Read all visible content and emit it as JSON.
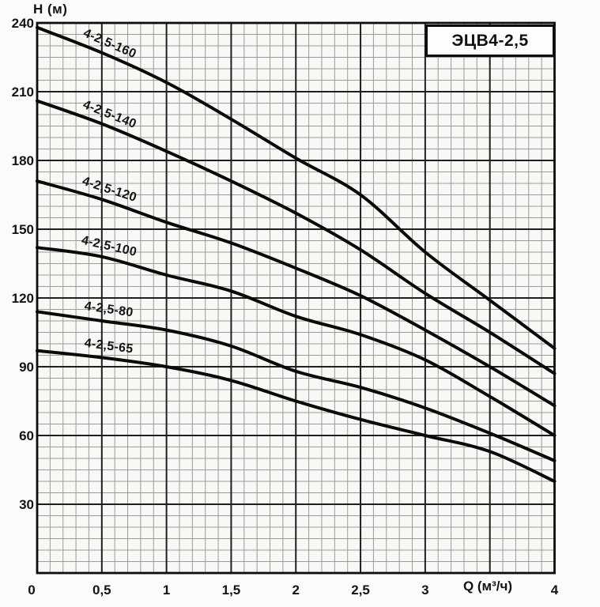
{
  "title_box": {
    "label": "ЭЦВ4-2,5"
  },
  "axes": {
    "y_title": "Н (м)",
    "x_title": "Q (м³/ч)"
  },
  "colors": {
    "background": "#fbfbf9",
    "plot_background": "#f8f8f5",
    "minor_grid": "#9b9b9b",
    "major_grid": "#1f1f1f",
    "border": "#0d0d0d",
    "curve": "#0a0a0a",
    "text": "#141414"
  },
  "chart_data": {
    "type": "line",
    "title": "ЭЦВ4-2,5",
    "xlabel": "Q (м³/ч)",
    "ylabel": "Н (м)",
    "xlim": [
      0,
      4
    ],
    "ylim": [
      0,
      240
    ],
    "x_major_step": 0.5,
    "x_minor_step": 0.1,
    "y_major_step": 30,
    "y_minor_step": 5,
    "grid": "on",
    "legend": "labels-on-curves",
    "label_anchor_q": 0.55,
    "x_ticks": [
      {
        "value": 0,
        "label": "0"
      },
      {
        "value": 0.5,
        "label": "0,5"
      },
      {
        "value": 1,
        "label": "1"
      },
      {
        "value": 1.5,
        "label": "1,5"
      },
      {
        "value": 2,
        "label": "2"
      },
      {
        "value": 2.5,
        "label": "2,5"
      },
      {
        "value": 3,
        "label": "3"
      },
      {
        "value": 4,
        "label": "4"
      }
    ],
    "y_ticks": [
      {
        "value": 240,
        "label": "240"
      },
      {
        "value": 210,
        "label": "210"
      },
      {
        "value": 180,
        "label": "180"
      },
      {
        "value": 150,
        "label": "150"
      },
      {
        "value": 120,
        "label": "120"
      },
      {
        "value": 90,
        "label": "90"
      },
      {
        "value": 60,
        "label": "60"
      },
      {
        "value": 30,
        "label": "30"
      }
    ],
    "x": [
      0,
      0.5,
      1,
      1.5,
      2,
      2.5,
      3,
      3.5,
      4
    ],
    "series": [
      {
        "name": "4-2,5-160",
        "values": [
          238,
          227,
          214,
          198,
          181,
          165,
          140,
          119,
          98
        ]
      },
      {
        "name": "4-2,5-140",
        "values": [
          206,
          196,
          184,
          171,
          157,
          141,
          122,
          105,
          87
        ]
      },
      {
        "name": "4-2,5-120",
        "values": [
          171,
          163,
          153,
          144,
          133,
          121,
          106,
          90,
          73
        ]
      },
      {
        "name": "4-2,5-100",
        "values": [
          142,
          138,
          130,
          123,
          112,
          104,
          93,
          77,
          60
        ]
      },
      {
        "name": "4-2,5-80",
        "values": [
          114,
          110,
          106,
          99,
          88,
          81,
          72,
          61,
          49
        ]
      },
      {
        "name": "4-2,5-65",
        "values": [
          97,
          94,
          90,
          84,
          75,
          67,
          60,
          53,
          40
        ]
      }
    ]
  }
}
